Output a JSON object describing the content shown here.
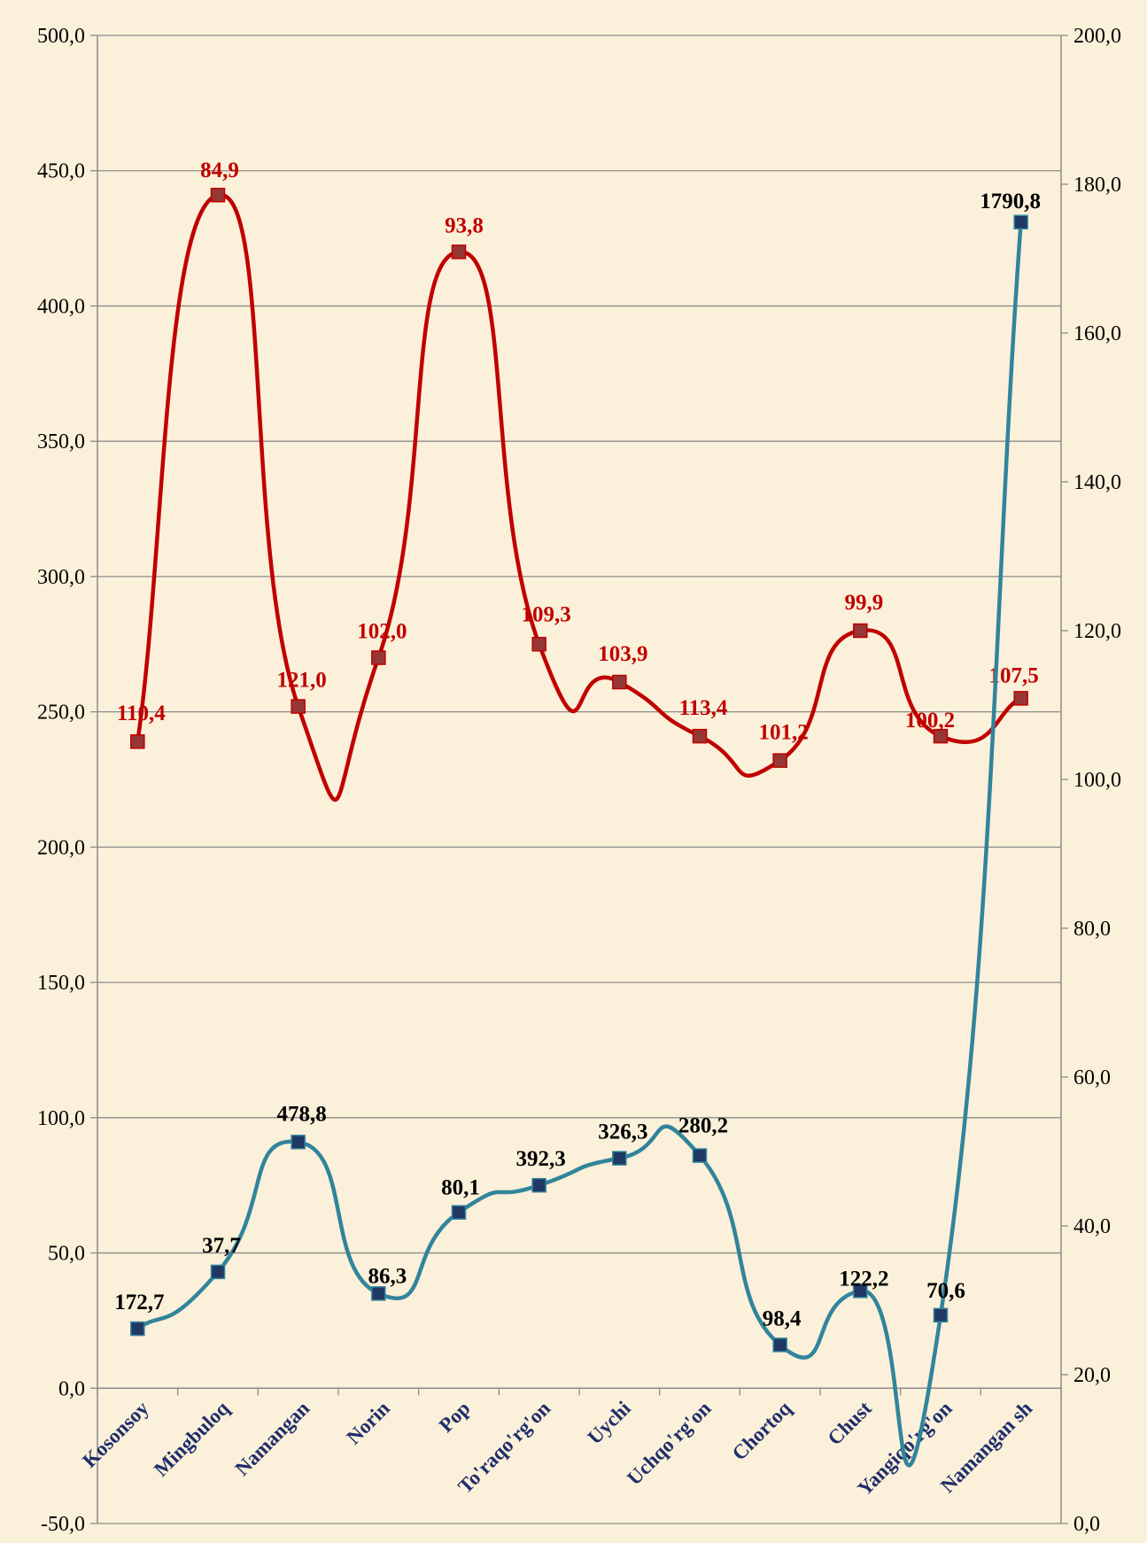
{
  "chart_data": {
    "type": "line",
    "title": "",
    "categories": [
      "Kosonsoy",
      "Mingbuloq",
      "Namangan",
      "Norin",
      "Pop",
      "To'raqo'rg'on",
      "Uychi",
      "Uchqo'rg'on",
      "Chortoq",
      "Chust",
      "Yangiqo'rg'on",
      "Namangan sh"
    ],
    "y_left": {
      "min": -50,
      "max": 500,
      "step": 50,
      "tick_labels": [
        "-50,0",
        "0,0",
        "50,0",
        "100,0",
        "150,0",
        "200,0",
        "250,0",
        "300,0",
        "350,0",
        "400,0",
        "450,0",
        "500,0"
      ]
    },
    "y_right": {
      "min": 0,
      "max": 200,
      "step": 20,
      "tick_labels": [
        "0,0",
        "20,0",
        "40,0",
        "60,0",
        "80,0",
        "100,0",
        "120,0",
        "140,0",
        "160,0",
        "180,0",
        "200,0"
      ]
    },
    "grid": true,
    "series": [
      {
        "axis": "left",
        "color": "#c00000",
        "marker_color": "#953735",
        "values": [
          239,
          441,
          252,
          270,
          420,
          275,
          261,
          241,
          232,
          280,
          241,
          255
        ],
        "labels": [
          "110,4",
          "84,9",
          "121,0",
          "102,0",
          "93,8",
          "109,3",
          "103,9",
          "113,4",
          "101,2",
          "99,9",
          "100,2",
          "107,5"
        ]
      },
      {
        "axis": "left",
        "color": "#31849b",
        "marker_color": "#1f3864",
        "values": [
          22,
          43,
          91,
          35,
          65,
          75,
          85,
          86,
          16,
          36,
          27,
          431
        ],
        "labels": [
          "172,7",
          "37,7",
          "478,8",
          "86,3",
          "80,1",
          "392,3",
          "326,3",
          "280,2",
          "98,4",
          "122,2",
          "70,6",
          "1790,8"
        ]
      }
    ]
  }
}
